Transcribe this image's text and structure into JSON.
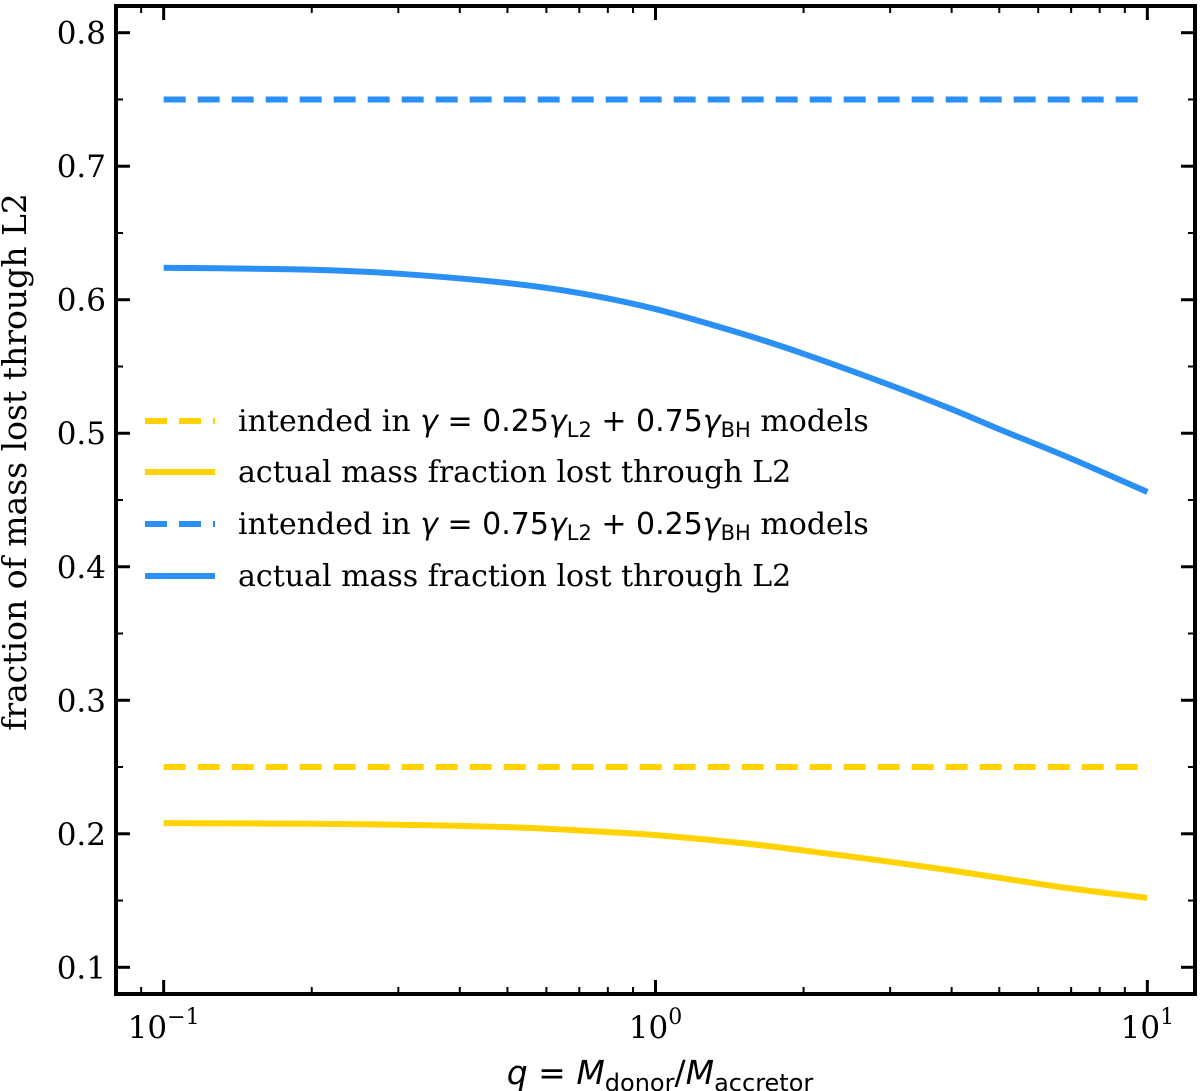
{
  "chart_data": {
    "type": "line",
    "xscale": "log",
    "xlim": [
      0.08,
      12.5
    ],
    "ylim": [
      0.08,
      0.82
    ],
    "xlabel": "q = M_donor/M_accretor",
    "xlabel_parts": {
      "lhs": "q",
      "eq": " = ",
      "num": "M",
      "num_sub": "donor",
      "slash": "/",
      "den": "M",
      "den_sub": "accretor"
    },
    "ylabel": "fraction of mass lost through L2",
    "yticks": [
      0.1,
      0.2,
      0.3,
      0.4,
      0.5,
      0.6,
      0.7,
      0.8
    ],
    "ytick_labels": [
      "0.1",
      "0.2",
      "0.3",
      "0.4",
      "0.5",
      "0.6",
      "0.7",
      "0.8"
    ],
    "xticks_major": [
      0.1,
      1,
      10
    ],
    "xtick_labels": [
      {
        "base": "10",
        "exp": "−1"
      },
      {
        "base": "10",
        "exp": "0"
      },
      {
        "base": "10",
        "exp": "1"
      }
    ],
    "colors": {
      "yellow": "#ffd200",
      "blue": "#2b90f5",
      "frame": "#000000"
    },
    "series": [
      {
        "name": "intended in γ = 0.25γL2 + 0.75γBH models",
        "color": "#ffd200",
        "style": "dashed",
        "x": [
          0.1,
          10
        ],
        "y": [
          0.25,
          0.25
        ]
      },
      {
        "name": "actual mass fraction lost through L2",
        "color": "#ffd200",
        "style": "solid",
        "x": [
          0.1,
          0.2,
          0.3,
          0.5,
          0.7,
          1.0,
          1.5,
          2.0,
          3.0,
          4.0,
          5.0,
          7.0,
          10.0
        ],
        "y": [
          0.208,
          0.2075,
          0.2068,
          0.205,
          0.2025,
          0.199,
          0.193,
          0.1875,
          0.179,
          0.1725,
          0.167,
          0.159,
          0.152
        ]
      },
      {
        "name": "intended in γ = 0.75γL2 + 0.25γBH models",
        "color": "#2b90f5",
        "style": "dashed",
        "x": [
          0.1,
          10
        ],
        "y": [
          0.75,
          0.75
        ]
      },
      {
        "name": "actual mass fraction lost through L2",
        "color": "#2b90f5",
        "style": "solid",
        "x": [
          0.1,
          0.2,
          0.3,
          0.5,
          0.7,
          1.0,
          1.5,
          2.0,
          3.0,
          4.0,
          5.0,
          7.0,
          10.0
        ],
        "y": [
          0.624,
          0.6225,
          0.6195,
          0.6125,
          0.605,
          0.593,
          0.5745,
          0.5595,
          0.536,
          0.518,
          0.503,
          0.481,
          0.456
        ]
      }
    ],
    "legend": {
      "placement": "center-left",
      "entries": [
        {
          "pre": "intended in ",
          "g1": "γ",
          "eq": " = 0.25",
          "g2": "γ",
          "sub1": "L2",
          "plus": " + 0.75",
          "g3": "γ",
          "sub2": "BH",
          "post": " models"
        },
        {
          "text": "actual mass fraction lost through L2"
        },
        {
          "pre": "intended in ",
          "g1": "γ",
          "eq": " = 0.75",
          "g2": "γ",
          "sub1": "L2",
          "plus": " + 0.25",
          "g3": "γ",
          "sub2": "BH",
          "post": " models"
        },
        {
          "text": "actual mass fraction lost through L2"
        }
      ]
    }
  }
}
